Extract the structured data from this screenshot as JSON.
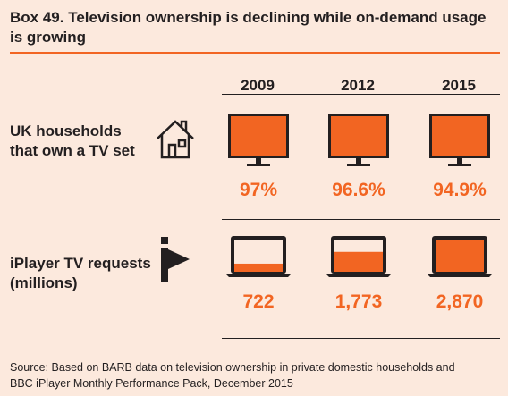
{
  "title_lines": [
    "Box 49. Television ownership is declining while on-demand usage",
    "is growing"
  ],
  "chart_data": {
    "type": "table",
    "title": "Box 49. Television ownership is declining while on-demand usage is growing",
    "columns": [
      "2009",
      "2012",
      "2015"
    ],
    "rows": [
      {
        "label_lines": [
          "UK households",
          "that own a TV set"
        ],
        "icon": "house-icon",
        "visual": "tv-set",
        "values": [
          97,
          96.6,
          94.9
        ],
        "display": [
          "97%",
          "96.6%",
          "94.9%"
        ]
      },
      {
        "label_lines": [
          "iPlayer TV requests",
          "(millions)"
        ],
        "icon": "iplayer-icon",
        "visual": "laptop",
        "values": [
          722,
          1773,
          2870
        ],
        "display": [
          "722",
          "1,773",
          "2,870"
        ],
        "max": 2870
      }
    ]
  },
  "colors": {
    "accent": "#f26522",
    "dark": "#231f20",
    "background": "#fce9dd"
  },
  "source_lines": [
    "Source: Based on BARB data on television ownership in private domestic households and",
    "BBC iPlayer Monthly Performance Pack, December 2015"
  ]
}
